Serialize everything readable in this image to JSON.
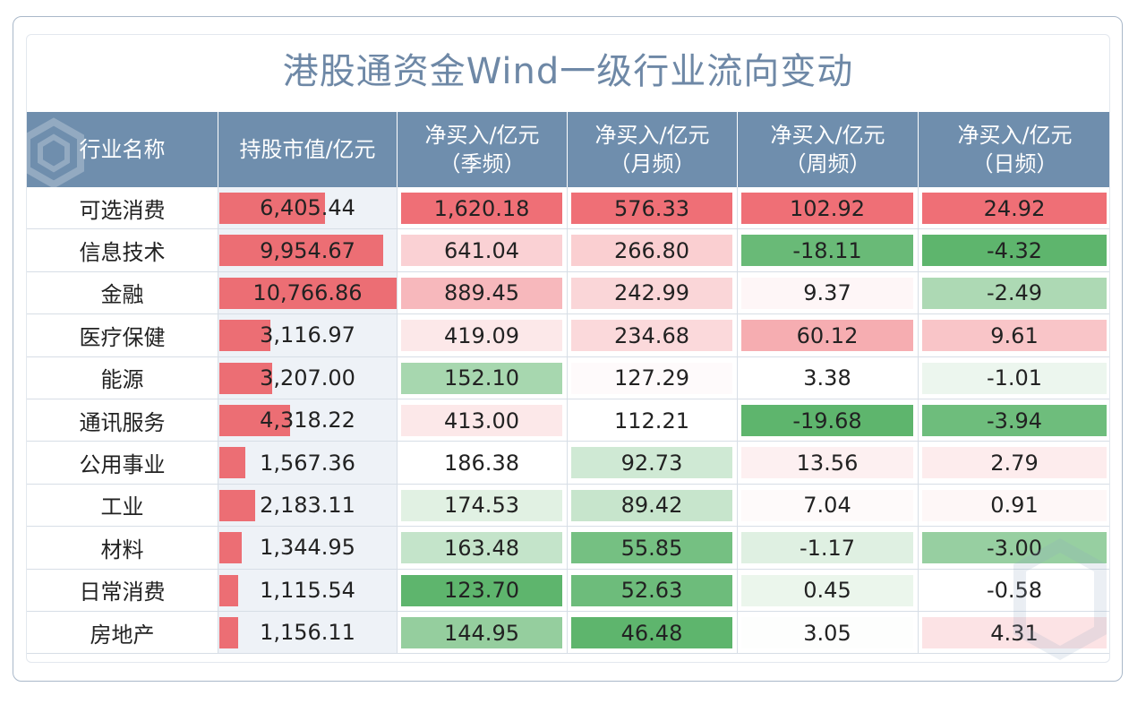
{
  "title": "港股通资金Wind一级行业流向变动",
  "headers": {
    "industry": "行业名称",
    "market_value": "持股市值/亿元",
    "quarter": [
      "净买入/亿元",
      "（季频）"
    ],
    "month": [
      "净买入/亿元",
      "（月频）"
    ],
    "week": [
      "净买入/亿元",
      "（周频）"
    ],
    "day": [
      "净买入/亿元",
      "（日频）"
    ]
  },
  "colors": {
    "header_bg": "#6f8ead",
    "title": "#6e88a6",
    "market_bar": "#ec6e74",
    "positive": "#ef6f76",
    "negative": "#5eb56d"
  },
  "rows": [
    {
      "name": "可选消费",
      "mv": "6,405.44",
      "q": "1,620.18",
      "m": "576.33",
      "w": "102.92",
      "d": "24.92"
    },
    {
      "name": "信息技术",
      "mv": "9,954.67",
      "q": "641.04",
      "m": "266.80",
      "w": "-18.11",
      "d": "-4.32"
    },
    {
      "name": "金融",
      "mv": "10,766.86",
      "q": "889.45",
      "m": "242.99",
      "w": "9.37",
      "d": "-2.49"
    },
    {
      "name": "医疗保健",
      "mv": "3,116.97",
      "q": "419.09",
      "m": "234.68",
      "w": "60.12",
      "d": "9.61"
    },
    {
      "name": "能源",
      "mv": "3,207.00",
      "q": "152.10",
      "m": "127.29",
      "w": "3.38",
      "d": "-1.01"
    },
    {
      "name": "通讯服务",
      "mv": "4,318.22",
      "q": "413.00",
      "m": "112.21",
      "w": "-19.68",
      "d": "-3.94"
    },
    {
      "name": "公用事业",
      "mv": "1,567.36",
      "q": "186.38",
      "m": "92.73",
      "w": "13.56",
      "d": "2.79"
    },
    {
      "name": "工业",
      "mv": "2,183.11",
      "q": "174.53",
      "m": "89.42",
      "w": "7.04",
      "d": "0.91"
    },
    {
      "name": "材料",
      "mv": "1,344.95",
      "q": "163.48",
      "m": "55.85",
      "w": "-1.17",
      "d": "-3.00"
    },
    {
      "name": "日常消费",
      "mv": "1,115.54",
      "q": "123.70",
      "m": "52.63",
      "w": "0.45",
      "d": "-0.58"
    },
    {
      "name": "房地产",
      "mv": "1,156.11",
      "q": "144.95",
      "m": "46.48",
      "w": "3.05",
      "d": "4.31"
    }
  ]
}
